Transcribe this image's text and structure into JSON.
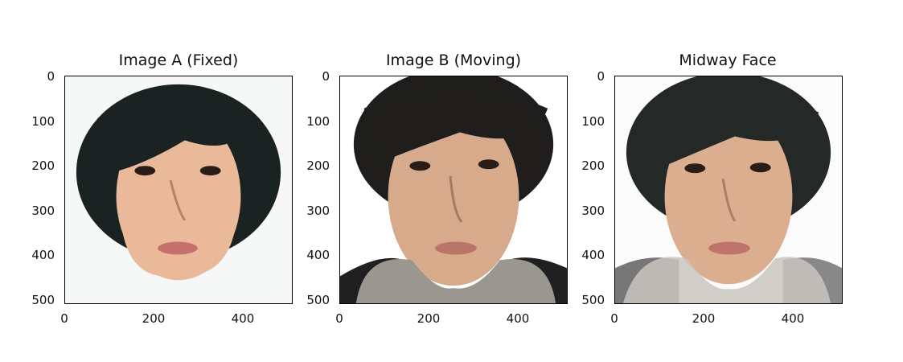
{
  "panels": [
    {
      "title": "Image A (Fixed)"
    },
    {
      "title": "Image B (Moving)"
    },
    {
      "title": "Midway Face"
    }
  ],
  "axes": {
    "yticks": [
      "0",
      "100",
      "200",
      "300",
      "400",
      "500"
    ],
    "xticks": [
      "0",
      "200",
      "400"
    ]
  },
  "colors": {
    "bg_a": "#f5f8f7",
    "bg_b": "#ffffff",
    "skin_a": "#e9b99a",
    "skin_b": "#d7aa8c",
    "skin_mid": "#dcae90",
    "hair": "#1b2222",
    "towel": "#9a9690"
  }
}
